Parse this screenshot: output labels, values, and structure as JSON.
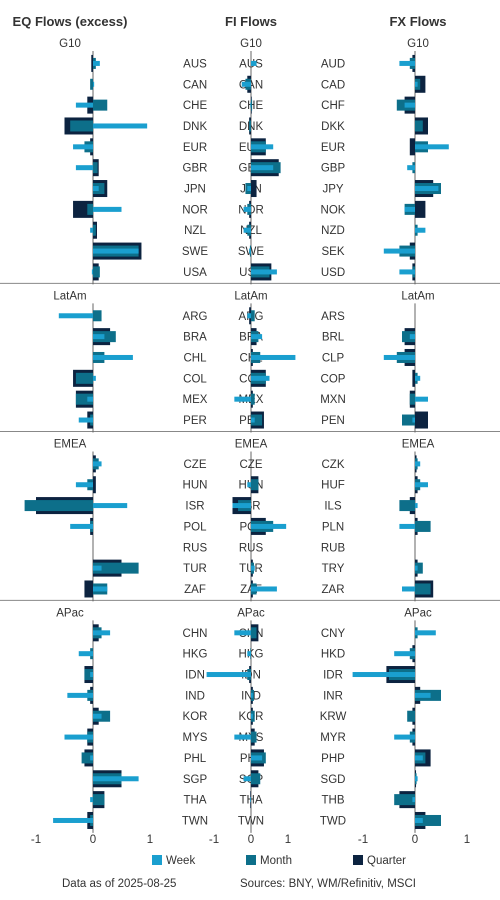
{
  "chart_data": {
    "type": "bar",
    "orientation": "horizontal",
    "xlim": [
      -1.3,
      1.2
    ],
    "x_ticks": [
      "-1",
      "0",
      "1"
    ],
    "x_tick_values": [
      -1,
      0,
      1
    ],
    "colors": {
      "Week": "#1a9fcf",
      "Month": "#0d6f8a",
      "Quarter": "#0c2340",
      "divider": "#888888",
      "axis": "#666666"
    },
    "legend": [
      "Week",
      "Month",
      "Quarter"
    ],
    "legend_position": "bottom",
    "footnote_left": "Data as of 2025-08-25",
    "footnote_right": "Sources:  BNY, WM/Refinitiv, MSCI",
    "panels": [
      {
        "title": "EQ Flows (excess)",
        "regions": [
          {
            "name": "G10",
            "categories": [
              "AUS",
              "CAN",
              "CHE",
              "DNK",
              "EUR",
              "GBR",
              "JPN",
              "NOR",
              "NZL",
              "SWE",
              "USA"
            ],
            "week": [
              0.12,
              0.02,
              -0.3,
              0.95,
              -0.35,
              -0.3,
              0.1,
              0.5,
              -0.05,
              0.8,
              -0.02
            ],
            "month": [
              0.05,
              -0.05,
              0.25,
              -0.4,
              -0.15,
              0.08,
              0.2,
              -0.1,
              0.05,
              0.8,
              0.12
            ],
            "quarter": [
              -0.03,
              0.0,
              -0.1,
              -0.5,
              -0.05,
              0.1,
              0.25,
              -0.35,
              0.07,
              0.85,
              0.1
            ]
          },
          {
            "name": "LatAm",
            "categories": [
              "ARG",
              "BRA",
              "CHL",
              "COL",
              "MEX",
              "PER"
            ],
            "week": [
              -0.6,
              0.2,
              0.7,
              0.05,
              -0.1,
              -0.25
            ],
            "month": [
              0.15,
              0.4,
              0.2,
              -0.3,
              -0.3,
              -0.05
            ],
            "quarter": [
              0.0,
              0.3,
              0.0,
              -0.35,
              -0.3,
              -0.1
            ]
          },
          {
            "name": "EMEA",
            "categories": [
              "CZE",
              "HUN",
              "ISR",
              "POL",
              "RUS",
              "TUR",
              "ZAF"
            ],
            "week": [
              0.15,
              -0.3,
              0.6,
              -0.4,
              0.0,
              0.15,
              0.25
            ],
            "month": [
              0.1,
              -0.1,
              -1.2,
              -0.05,
              0.0,
              0.8,
              0.25
            ],
            "quarter": [
              0.05,
              0.05,
              -1.0,
              -0.05,
              0.0,
              0.5,
              -0.15
            ]
          },
          {
            "name": "APac",
            "categories": [
              "CHN",
              "HKG",
              "IDN",
              "IND",
              "KOR",
              "MYS",
              "PHL",
              "SGP",
              "THA",
              "TWN"
            ],
            "week": [
              0.3,
              -0.25,
              -0.05,
              -0.45,
              0.15,
              -0.5,
              -0.05,
              0.8,
              -0.05,
              -0.7
            ],
            "month": [
              0.15,
              -0.05,
              -0.15,
              -0.1,
              0.3,
              -0.1,
              -0.2,
              0.5,
              0.2,
              -0.05
            ],
            "quarter": [
              0.1,
              0.0,
              -0.15,
              -0.05,
              0.1,
              -0.1,
              -0.15,
              0.5,
              0.2,
              -0.1
            ]
          }
        ]
      },
      {
        "title": "FI Flows",
        "regions": [
          {
            "name": "G10",
            "categories": [
              "AUS",
              "CAN",
              "CHE",
              "DNK",
              "EUR",
              "GBR",
              "JPN",
              "NOR",
              "NZL",
              "SWE",
              "USA"
            ],
            "week": [
              0.15,
              -0.25,
              -0.02,
              0.0,
              0.6,
              0.6,
              -0.1,
              -0.2,
              -0.2,
              -0.05,
              0.7
            ],
            "month": [
              0.0,
              -0.15,
              0.03,
              -0.05,
              0.4,
              0.8,
              -0.15,
              -0.1,
              -0.1,
              -0.03,
              0.5
            ],
            "quarter": [
              0.0,
              -0.1,
              0.02,
              -0.05,
              0.4,
              0.75,
              0.15,
              -0.05,
              -0.05,
              0.0,
              0.55
            ]
          },
          {
            "name": "LatAm",
            "categories": [
              "ARG",
              "BRA",
              "CHL",
              "COL",
              "MEX",
              "PER"
            ],
            "week": [
              -0.1,
              0.3,
              1.2,
              0.5,
              -0.45,
              0.1
            ],
            "month": [
              0.1,
              0.2,
              0.25,
              0.4,
              0.1,
              0.3
            ],
            "quarter": [
              -0.05,
              0.15,
              0.05,
              0.4,
              0.05,
              0.35
            ]
          },
          {
            "name": "EMEA",
            "categories": [
              "CZE",
              "HUN",
              "ISR",
              "POL",
              "RUS",
              "TUR",
              "ZAF"
            ],
            "week": [
              0.0,
              -0.1,
              -0.5,
              0.95,
              0.0,
              0.1,
              0.7
            ],
            "month": [
              0.0,
              0.2,
              -0.35,
              0.6,
              0.0,
              0.08,
              0.15
            ],
            "quarter": [
              0.0,
              0.2,
              -0.5,
              0.4,
              0.0,
              0.05,
              0.05
            ]
          },
          {
            "name": "APac",
            "categories": [
              "CHN",
              "HKG",
              "IDN",
              "IND",
              "KOR",
              "MYS",
              "PHL",
              "SGP",
              "THA",
              "TWN"
            ],
            "week": [
              -0.45,
              -0.1,
              -1.2,
              0.05,
              0.05,
              -0.45,
              0.3,
              -0.2,
              -0.02,
              0.0
            ],
            "month": [
              0.15,
              -0.02,
              -0.1,
              0.08,
              0.1,
              0.15,
              0.4,
              0.25,
              0.0,
              0.0
            ],
            "quarter": [
              0.2,
              0.0,
              -0.05,
              0.05,
              0.05,
              0.1,
              0.35,
              0.2,
              -0.02,
              0.0
            ]
          }
        ]
      },
      {
        "title": "FX Flows",
        "regions": [
          {
            "name": "G10",
            "categories": [
              "AUD",
              "CAD",
              "CHF",
              "DKK",
              "EUR",
              "GBP",
              "JPY",
              "NOK",
              "NZD",
              "SEK",
              "USD"
            ],
            "week": [
              -0.3,
              0.05,
              -0.2,
              0.0,
              0.65,
              -0.15,
              0.45,
              -0.2,
              0.2,
              -0.6,
              -0.3
            ],
            "month": [
              -0.1,
              0.1,
              -0.35,
              0.15,
              0.25,
              -0.05,
              0.5,
              -0.2,
              0.05,
              -0.3,
              -0.05
            ],
            "quarter": [
              -0.05,
              0.2,
              -0.2,
              0.25,
              -0.1,
              0.0,
              0.35,
              0.2,
              0.0,
              -0.1,
              -0.05
            ]
          },
          {
            "name": "LatAm",
            "categories": [
              "ARS",
              "BRL",
              "CLP",
              "COP",
              "MXN",
              "PEN"
            ],
            "week": [
              0.0,
              -0.1,
              -0.6,
              0.1,
              0.25,
              -0.05
            ],
            "month": [
              0.0,
              -0.25,
              -0.35,
              0.05,
              -0.1,
              -0.25
            ],
            "quarter": [
              0.0,
              -0.2,
              -0.2,
              -0.05,
              -0.1,
              0.25
            ]
          },
          {
            "name": "EMEA",
            "categories": [
              "CZK",
              "HUF",
              "ILS",
              "PLN",
              "RUB",
              "TRY",
              "ZAR"
            ],
            "week": [
              0.1,
              0.25,
              0.05,
              -0.3,
              0.0,
              0.05,
              -0.25
            ],
            "month": [
              0.05,
              0.1,
              -0.3,
              0.3,
              0.0,
              0.15,
              0.3
            ],
            "quarter": [
              0.03,
              0.05,
              -0.1,
              0.05,
              0.0,
              0.05,
              0.35
            ]
          },
          {
            "name": "APac",
            "categories": [
              "CNY",
              "HKD",
              "IDR",
              "INR",
              "KRW",
              "MYR",
              "PHP",
              "SGD",
              "THB",
              "TWD"
            ],
            "week": [
              0.4,
              -0.4,
              -1.2,
              0.3,
              0.0,
              -0.4,
              0.15,
              0.05,
              -0.05,
              0.15
            ],
            "month": [
              0.05,
              -0.1,
              -0.5,
              0.5,
              -0.15,
              -0.1,
              0.2,
              0.03,
              -0.4,
              0.5
            ],
            "quarter": [
              0.0,
              -0.05,
              -0.55,
              0.1,
              -0.05,
              -0.05,
              0.3,
              0.02,
              -0.3,
              0.2
            ]
          }
        ]
      }
    ]
  }
}
